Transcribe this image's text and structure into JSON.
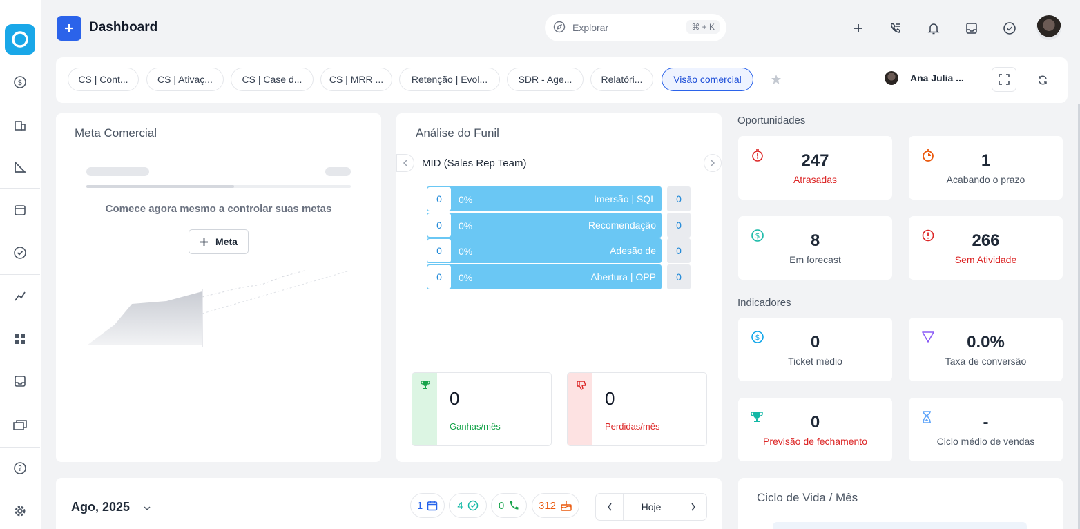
{
  "header": {
    "title": "Dashboard",
    "search_placeholder": "Explorar",
    "search_shortcut": "⌘ + K"
  },
  "tabs": [
    {
      "label": "CS | Cont..."
    },
    {
      "label": "CS | Ativaç..."
    },
    {
      "label": "CS | Case d..."
    },
    {
      "label": "CS | MRR ..."
    },
    {
      "label": "Retenção | Evol..."
    },
    {
      "label": "SDR - Age..."
    },
    {
      "label": "Relatóri..."
    },
    {
      "label": "Visão comercial"
    }
  ],
  "user_chip": {
    "name": "Ana Julia ..."
  },
  "meta_comercial": {
    "title": "Meta Comercial",
    "cta": "Comece agora mesmo a controlar suas metas",
    "button": "Meta"
  },
  "funil": {
    "title": "Análise do Funil",
    "team": "MID (Sales Rep Team)",
    "stages": [
      {
        "count": "0",
        "pct": "0%",
        "name": "Imersão | SQL",
        "side": "0"
      },
      {
        "count": "0",
        "pct": "0%",
        "name": "Recomendação",
        "side": "0"
      },
      {
        "count": "0",
        "pct": "0%",
        "name": "Adesão de",
        "side": "0"
      },
      {
        "count": "0",
        "pct": "0%",
        "name": "Abertura | OPP",
        "side": "0"
      }
    ],
    "won": {
      "value": "0",
      "label": "Ganhas/mês"
    },
    "lost": {
      "value": "0",
      "label": "Perdidas/mês"
    }
  },
  "oportunidades": {
    "title": "Oportunidades",
    "cards": [
      {
        "value": "247",
        "label": "Atrasadas"
      },
      {
        "value": "1",
        "label": "Acabando o prazo"
      },
      {
        "value": "8",
        "label": "Em forecast"
      },
      {
        "value": "266",
        "label": "Sem Atividade"
      }
    ]
  },
  "indicadores": {
    "title": "Indicadores",
    "cards": [
      {
        "value": "0",
        "label": "Ticket médio"
      },
      {
        "value": "0.0%",
        "label": "Taxa de conversão"
      },
      {
        "value": "0",
        "label": "Previsão de fechamento"
      },
      {
        "value": "-",
        "label": "Ciclo médio de vendas"
      }
    ]
  },
  "calendar": {
    "month": "Ago, 2025",
    "pills": [
      {
        "value": "1",
        "icon": "calendar-icon"
      },
      {
        "value": "4",
        "icon": "check-circle-icon"
      },
      {
        "value": "0",
        "icon": "phone-icon"
      },
      {
        "value": "312",
        "icon": "cake-icon"
      }
    ],
    "today": "Hoje"
  },
  "ciclo_vida": {
    "title": "Ciclo de Vida / Mês"
  },
  "colors": {
    "accent": "#2b63ea",
    "brand": "#19a7e8",
    "funnel": "#6ac7f4",
    "won": "#16a34a",
    "lost": "#dc2626"
  }
}
